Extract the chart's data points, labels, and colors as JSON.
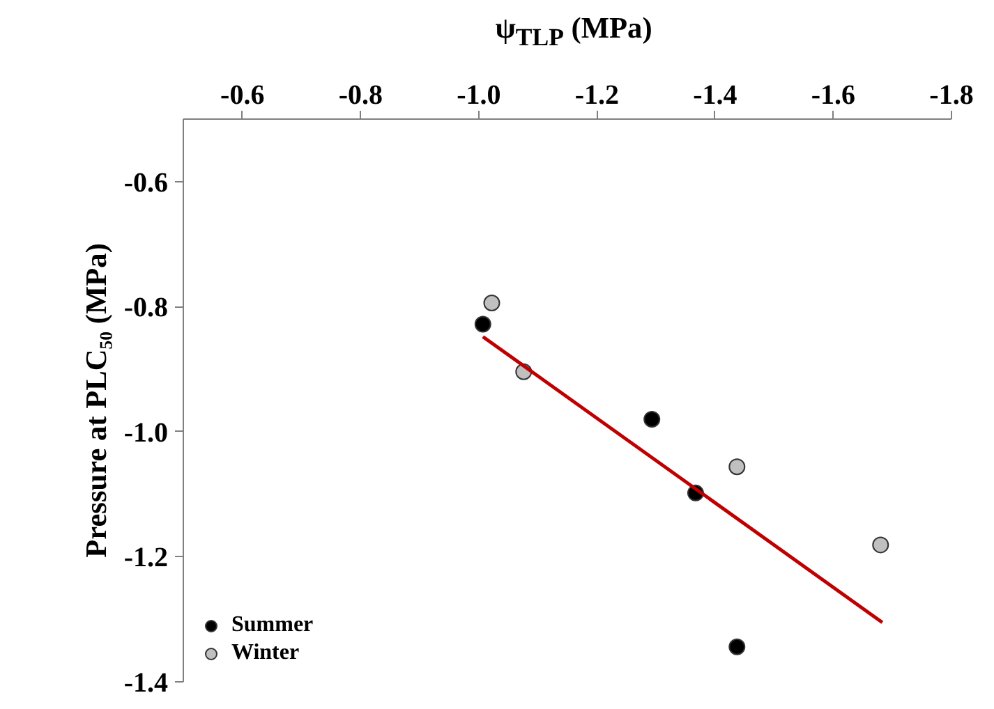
{
  "chart_data": {
    "type": "scatter",
    "xlabel": "ψ$_{TLP}$ (MPa)",
    "ylabel": "Pressure at PLC₅₀ (MPa)",
    "xlim": [
      -0.5,
      -1.8
    ],
    "ylim": [
      -1.4,
      -0.5
    ],
    "xticks": [
      -0.6,
      -0.8,
      {
        "value": -1,
        "label": "-1.0"
      },
      -1.2,
      -1.4,
      -1.6,
      -1.8
    ],
    "yticks": [
      -0.6,
      -0.8,
      {
        "value": -1,
        "label": "-1.0"
      },
      -1.2,
      -1.4
    ],
    "grid": false,
    "legend": "bottom left",
    "marker": "circle",
    "series": [
      {
        "name": "Summer",
        "color": "#000000",
        "x": [
          -1.007,
          -1.293,
          -1.367,
          -1.437
        ],
        "values": [
          -0.828,
          -0.98,
          -1.098,
          -1.344
        ]
      },
      {
        "name": "Winter",
        "color": "#c0c0c0",
        "x": [
          -1.022,
          -1.076,
          -1.437,
          -1.68
        ],
        "values": [
          -0.794,
          -0.904,
          -1.056,
          -1.181
        ]
      },
      {
        "type": "line",
        "marker": "none",
        "color": "#c00000",
        "x": [
          -1.007,
          -1.683
        ],
        "values": [
          -0.848,
          -1.305
        ]
      }
    ]
  }
}
